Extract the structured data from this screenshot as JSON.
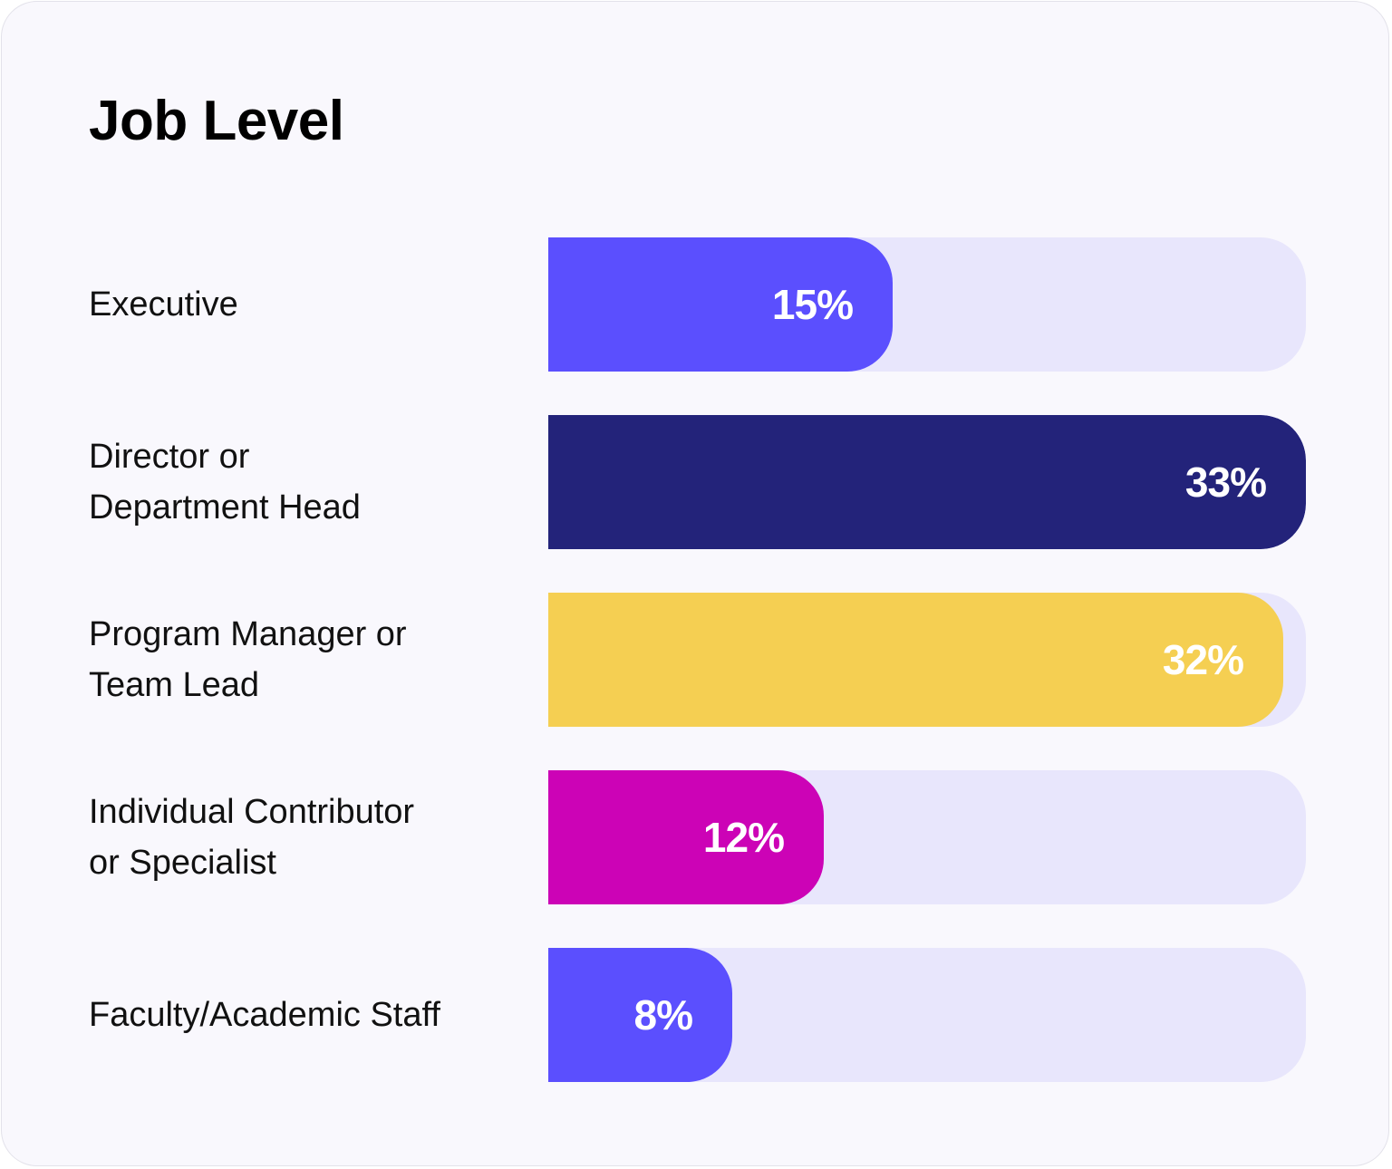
{
  "chart_data": {
    "type": "bar",
    "orientation": "horizontal",
    "title": "Job Level",
    "categories": [
      "Director or Department Head",
      "Executive",
      "Faculty/Academic Staff",
      "Individual Contributor or Specialist",
      "Program Manager or Team Lead"
    ],
    "rows": [
      {
        "label_lines": [
          "Executive"
        ],
        "value": 15,
        "value_label": "15%",
        "color": "#5b4ffe",
        "text_color": "#ffffff"
      },
      {
        "label_lines": [
          "Director or",
          "Department Head"
        ],
        "value": 33,
        "value_label": "33%",
        "color": "#23237a",
        "text_color": "#ffffff"
      },
      {
        "label_lines": [
          "Program Manager or",
          "Team Lead"
        ],
        "value": 32,
        "value_label": "32%",
        "color": "#f5cf52",
        "text_color": "#ffffff"
      },
      {
        "label_lines": [
          "Individual Contributor",
          "or Specialist"
        ],
        "value": 12,
        "value_label": "12%",
        "color": "#cc03b6",
        "text_color": "#ffffff"
      },
      {
        "label_lines": [
          "Faculty/Academic Staff"
        ],
        "value": 8,
        "value_label": "8%",
        "color": "#5b4ffe",
        "text_color": "#ffffff"
      }
    ],
    "track_color": "#e8e6fc",
    "background": "#f9f8fd"
  }
}
